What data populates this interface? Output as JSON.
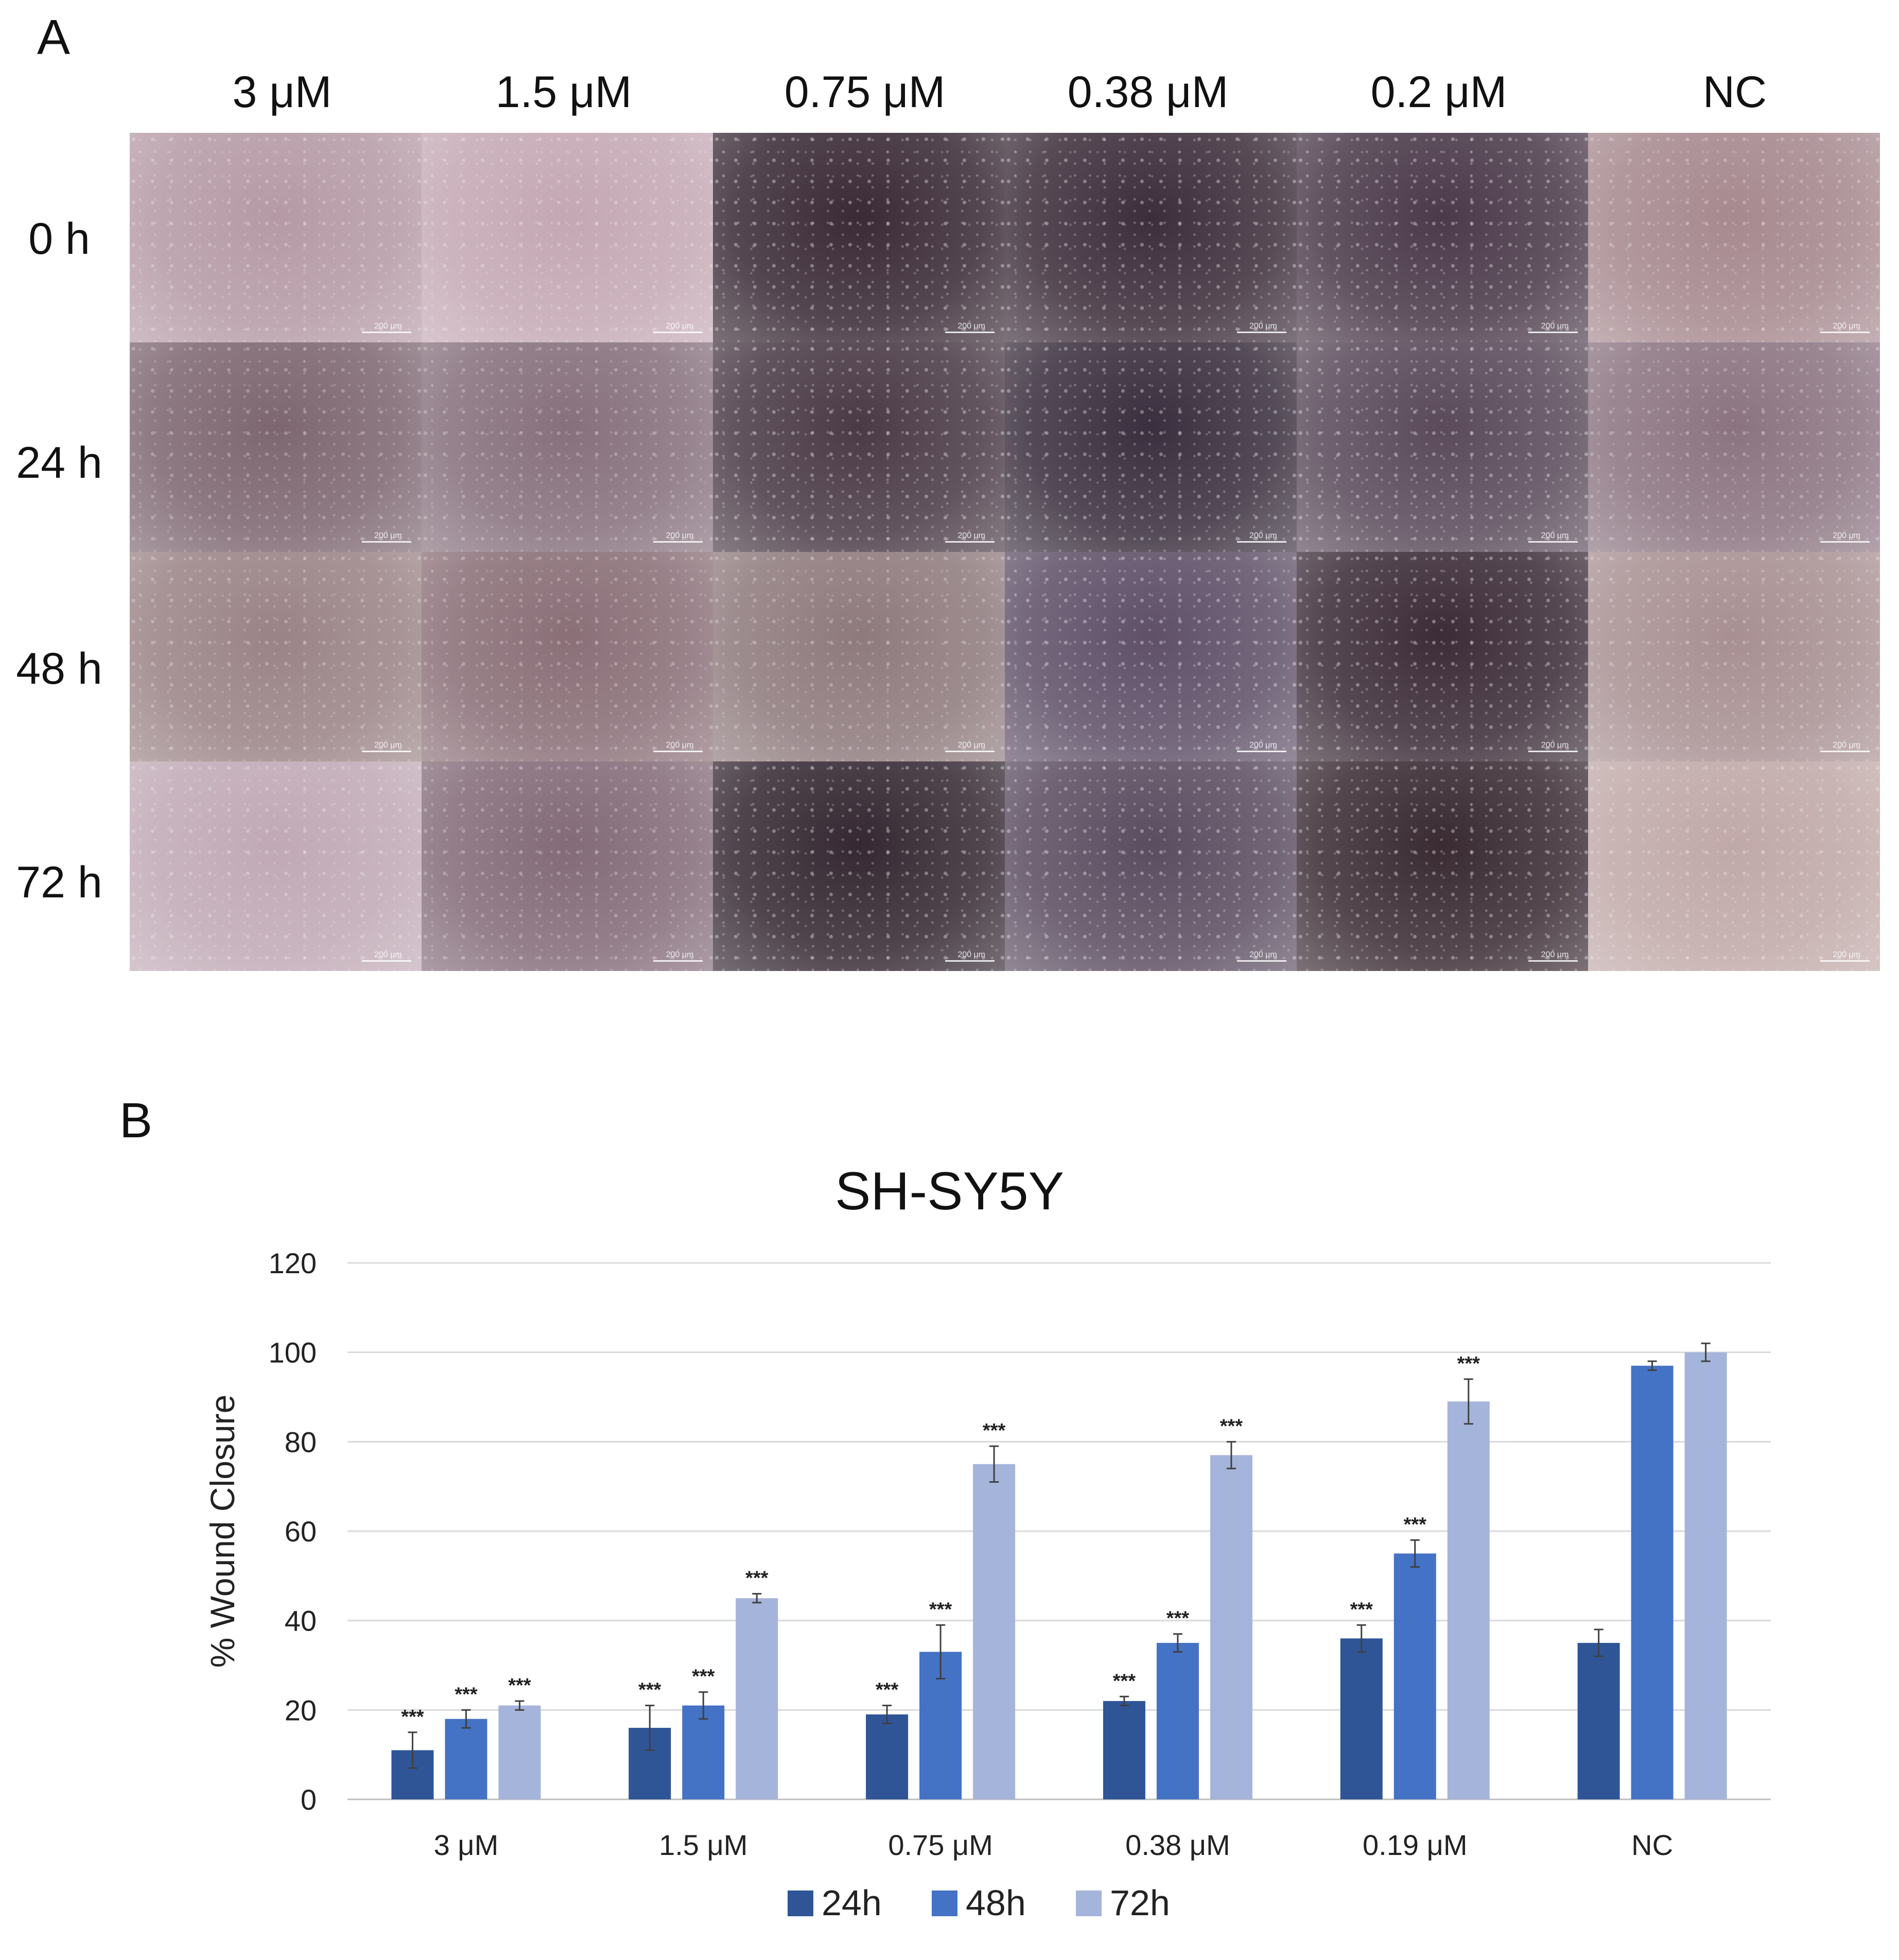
{
  "panel_a": {
    "letter": "A",
    "columns": [
      "3 μM",
      "1.5 μM",
      "0.75 μM",
      "0.38 μM",
      "0.2 μM",
      "NC"
    ],
    "rows": [
      "0 h",
      "24 h",
      "48 h",
      "72 h"
    ],
    "scale_label": "200 μm",
    "tile_shades": [
      [
        "#b59aa5",
        "#c4a8b4",
        "#3a2a36",
        "#3d2e3b",
        "#4b3a4a",
        "#a6898f"
      ],
      [
        "#7d6670",
        "#86707c",
        "#4a3a46",
        "#3a2f3e",
        "#5a4a5a",
        "#8b7480"
      ],
      [
        "#9a8386",
        "#8a6f77",
        "#8e7a7d",
        "#5f5068",
        "#3c2c38",
        "#a89092"
      ],
      [
        "#c0a9b5",
        "#836b78",
        "#352832",
        "#5b4d60",
        "#3a2b33",
        "#c0a9a8"
      ]
    ]
  },
  "panel_b": {
    "letter": "B"
  },
  "chart_data": {
    "type": "bar",
    "title": "SH-SY5Y",
    "xlabel": "",
    "ylabel": "% Wound Closure",
    "ylim": [
      0,
      120
    ],
    "yticks": [
      0,
      20,
      40,
      60,
      80,
      100,
      120
    ],
    "grid": true,
    "legend_position": "bottom",
    "categories": [
      "3 μM",
      "1.5 μM",
      "0.75 μM",
      "0.38 μM",
      "0.19 μM",
      "NC"
    ],
    "series": [
      {
        "name": "24h",
        "color": "#2f5597",
        "values": [
          11,
          16,
          19,
          22,
          36,
          35
        ],
        "errors": [
          4,
          5,
          2,
          1,
          3,
          3
        ],
        "annotations": [
          "***",
          "***",
          "***",
          "***",
          "***",
          ""
        ]
      },
      {
        "name": "48h",
        "color": "#4472c4",
        "values": [
          18,
          21,
          33,
          35,
          55,
          97
        ],
        "errors": [
          2,
          3,
          6,
          2,
          3,
          1
        ],
        "annotations": [
          "***",
          "***",
          "***",
          "***",
          "***",
          ""
        ]
      },
      {
        "name": "72h",
        "color": "#a5b4da",
        "values": [
          21,
          45,
          75,
          77,
          89,
          100
        ],
        "errors": [
          1,
          1,
          4,
          3,
          5,
          2
        ],
        "annotations": [
          "***",
          "***",
          "***",
          "***",
          "***",
          ""
        ]
      }
    ]
  }
}
